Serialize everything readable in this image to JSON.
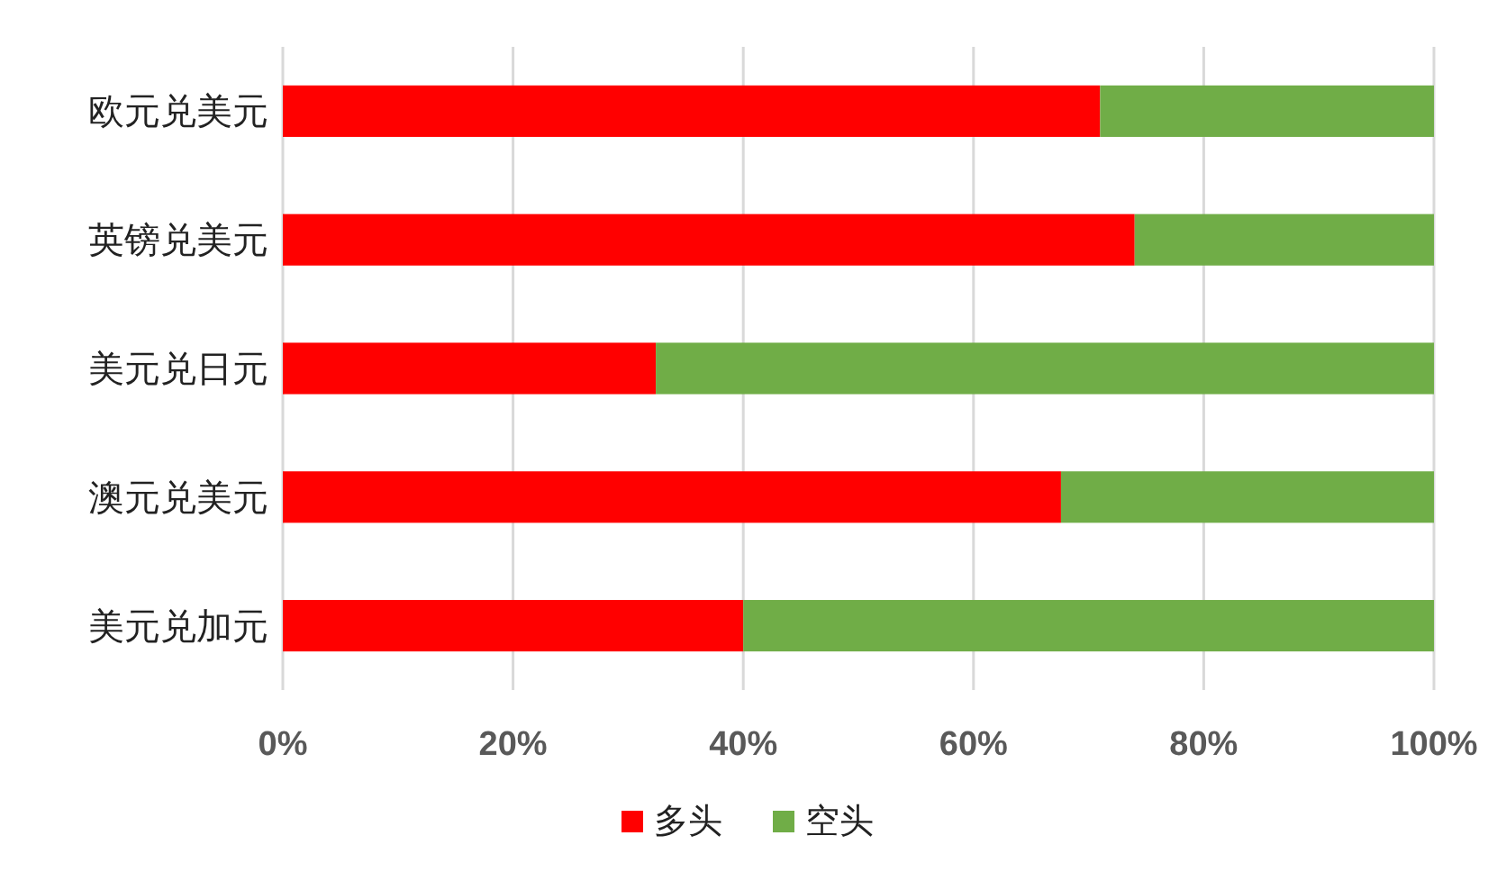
{
  "chart_data": {
    "type": "bar",
    "orientation": "horizontal",
    "stacked": true,
    "categories": [
      "欧元兑美元",
      "英镑兑美元",
      "美元兑日元",
      "澳元兑美元",
      "美元兑加元"
    ],
    "series": [
      {
        "name": "多头",
        "color": "#ff0000",
        "values": [
          71,
          74,
          32.4,
          67.6,
          40
        ]
      },
      {
        "name": "空头",
        "color": "#70ad47",
        "values": [
          29,
          26,
          67.6,
          32.4,
          60
        ]
      }
    ],
    "xlim": [
      0,
      100
    ],
    "xticks": [
      {
        "value": 0,
        "label": "0%"
      },
      {
        "value": 20,
        "label": "20%"
      },
      {
        "value": 40,
        "label": "40%"
      },
      {
        "value": 60,
        "label": "60%"
      },
      {
        "value": 80,
        "label": "80%"
      },
      {
        "value": 100,
        "label": "100%"
      }
    ],
    "grid": "x",
    "legend": "bottom"
  }
}
